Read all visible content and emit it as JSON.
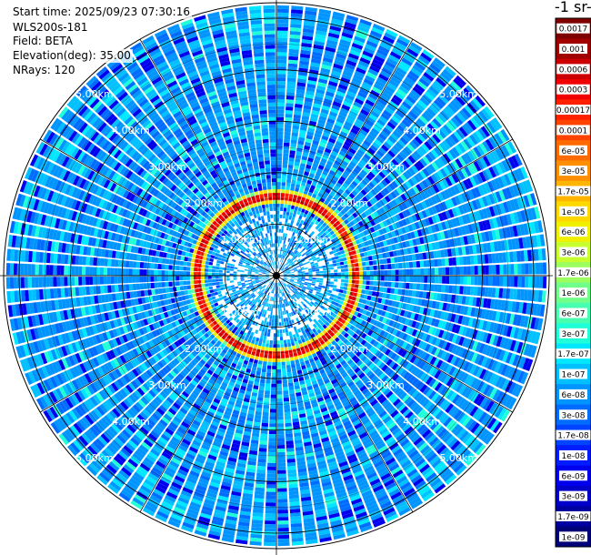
{
  "header": {
    "start_time": "Start time: 2025/09/23 07:30:16",
    "device": "WLS200s-181",
    "field": "Field: BETA",
    "elevation": "Elevation(deg): 35.00",
    "nrays": "NRays: 120"
  },
  "colorbar": {
    "title": "-1 sr-",
    "labels": [
      "0.0017",
      "0.001",
      "0.0006",
      "0.0003",
      "0.00017",
      "0.0001",
      "6e-05",
      "3e-05",
      "1.7e-05",
      "1e-05",
      "6e-06",
      "3e-06",
      "1.7e-06",
      "1e-06",
      "6e-07",
      "3e-07",
      "1.7e-07",
      "1e-07",
      "6e-08",
      "3e-08",
      "1.7e-08",
      "1e-08",
      "6e-09",
      "3e-09",
      "1.7e-09",
      "1e-09"
    ],
    "colors": [
      "#7f0000",
      "#a00000",
      "#cc0000",
      "#f00000",
      "#ff2000",
      "#ff4400",
      "#ff6a00",
      "#ff8f00",
      "#ffb400",
      "#ffd800",
      "#f0f000",
      "#c8ff30",
      "#9cff60",
      "#70ff8a",
      "#48ffb0",
      "#20ffd8",
      "#00e8ff",
      "#00c0ff",
      "#0094ff",
      "#006cff",
      "#0044ff",
      "#001cff",
      "#0000ee",
      "#0000c8",
      "#0000a0",
      "#000078"
    ]
  },
  "chart_data": {
    "type": "heatmap",
    "projection": "polar-ppi",
    "field": "BETA",
    "elevation_deg": 35.0,
    "nrays": 120,
    "range_rings_km": [
      1.0,
      2.0,
      3.0,
      4.0,
      5.0
    ],
    "ring_labels": [
      "1.00km",
      "2.00km",
      "3.00km",
      "4.00km",
      "5.00km"
    ],
    "max_range_km": 5.3,
    "azimuth_grid_deg": [
      0,
      30,
      60,
      90,
      120,
      150,
      180,
      210,
      240,
      270,
      300,
      330
    ],
    "color_scale": "log",
    "value_range": [
      1e-09,
      0.0017
    ],
    "dominant_value": 6e-08,
    "high_backscatter_ring_km": 1.5,
    "high_backscatter_ring_value": 0.0003
  }
}
